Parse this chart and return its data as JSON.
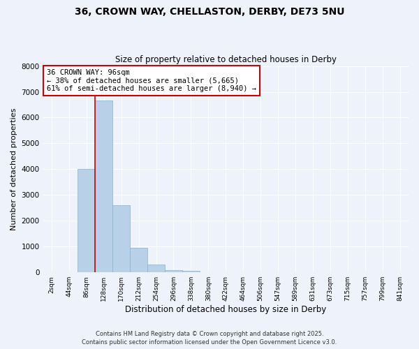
{
  "title1": "36, CROWN WAY, CHELLASTON, DERBY, DE73 5NU",
  "title2": "Size of property relative to detached houses in Derby",
  "xlabel": "Distribution of detached houses by size in Derby",
  "ylabel": "Number of detached properties",
  "bin_labels": [
    "2sqm",
    "44sqm",
    "86sqm",
    "128sqm",
    "170sqm",
    "212sqm",
    "254sqm",
    "296sqm",
    "338sqm",
    "380sqm",
    "422sqm",
    "464sqm",
    "506sqm",
    "547sqm",
    "589sqm",
    "631sqm",
    "673sqm",
    "715sqm",
    "757sqm",
    "799sqm",
    "841sqm"
  ],
  "bar_values": [
    5,
    10,
    4000,
    6650,
    2600,
    950,
    290,
    80,
    50,
    15,
    5,
    2,
    1,
    0,
    0,
    0,
    0,
    0,
    0,
    0,
    0
  ],
  "bar_color": "#b8d0e8",
  "bar_edge_color": "#8ab0d0",
  "red_line_x": 2.5,
  "annotation_line1": "36 CROWN WAY: 96sqm",
  "annotation_line2": "← 38% of detached houses are smaller (5,665)",
  "annotation_line3": "61% of semi-detached houses are larger (8,940) →",
  "annotation_box_color": "#ffffff",
  "annotation_box_edge": "#cc0000",
  "background_color": "#eef2fb",
  "ylim": [
    0,
    8000
  ],
  "yticks": [
    0,
    1000,
    2000,
    3000,
    4000,
    5000,
    6000,
    7000,
    8000
  ],
  "footer1": "Contains HM Land Registry data © Crown copyright and database right 2025.",
  "footer2": "Contains public sector information licensed under the Open Government Licence v3.0."
}
